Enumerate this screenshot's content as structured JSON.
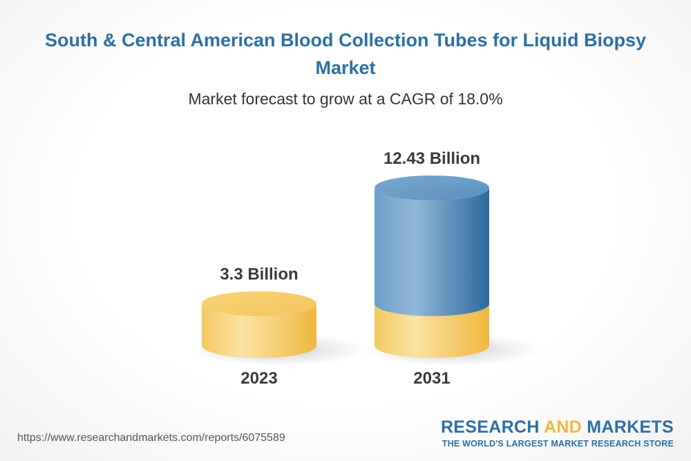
{
  "header": {
    "title": "South & Central American Blood Collection Tubes for Liquid Biopsy Market",
    "subtitle": "Market forecast to grow at a CAGR of 18.0%"
  },
  "chart_data": {
    "type": "bar",
    "categories": [
      "2023",
      "2031"
    ],
    "values": [
      3.3,
      12.43
    ],
    "value_labels": [
      "3.3 Billion",
      "12.43 Billion"
    ],
    "unit": "Billion",
    "colors": {
      "base": "#f2c25a",
      "growth": "#3d7aaa"
    }
  },
  "footer": {
    "url": "https://www.researchandmarkets.com/reports/6075589",
    "brand_part1": "RESEARCH ",
    "brand_part2": "AND",
    "brand_part3": " MARKETS",
    "brand_tagline": "THE WORLD'S LARGEST MARKET RESEARCH STORE"
  }
}
